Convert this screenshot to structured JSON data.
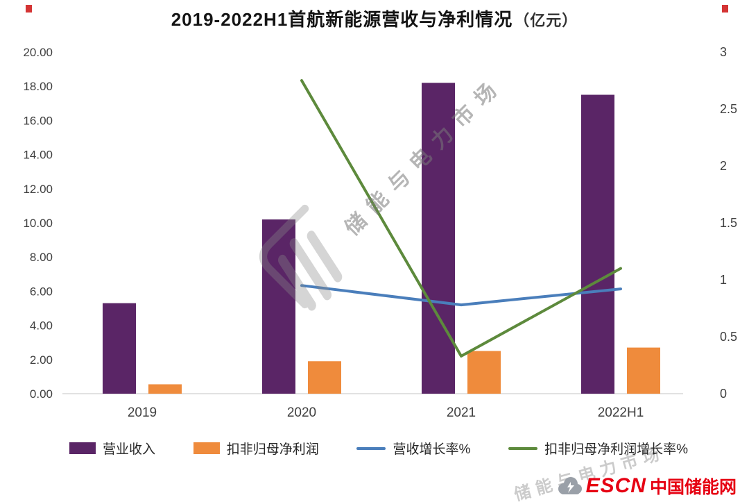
{
  "title": {
    "main": "2019-2022H1首航新能源营收与净利情况",
    "unit": "（亿元）"
  },
  "watermark": {
    "diagonal": "储能与电力市场",
    "corner": "储能与电力市场"
  },
  "footer": {
    "logo_text_bold": "ESCN",
    "logo_text": "中国储能网"
  },
  "chart_data": {
    "type": "bar",
    "subtype": "bar+line combo, dual axis",
    "categories": [
      "2019",
      "2020",
      "2021",
      "2022H1"
    ],
    "bar_series": [
      {
        "name": "营业收入",
        "color": "#5a2566",
        "axis": "left",
        "values": [
          5.3,
          10.2,
          18.2,
          17.5
        ]
      },
      {
        "name": "扣非归母净利润",
        "color": "#ef8b3c",
        "axis": "left",
        "values": [
          0.55,
          1.9,
          2.5,
          2.7
        ]
      }
    ],
    "line_series": [
      {
        "name": "营收增长率%",
        "color": "#4a7ebb",
        "axis": "right",
        "values": [
          null,
          0.95,
          0.78,
          0.92
        ]
      },
      {
        "name": "扣非归母净利润增长率%",
        "color": "#5d8a3c",
        "axis": "right",
        "values": [
          null,
          2.75,
          0.33,
          1.1
        ]
      }
    ],
    "left_axis": {
      "min": 0,
      "max": 20,
      "step": 2,
      "labels": [
        "0.00",
        "2.00",
        "4.00",
        "6.00",
        "8.00",
        "10.00",
        "12.00",
        "14.00",
        "16.00",
        "18.00",
        "20.00"
      ]
    },
    "right_axis": {
      "min": 0,
      "max": 3,
      "step": 0.5,
      "labels": [
        "0",
        "0.5",
        "1",
        "1.5",
        "2",
        "2.5",
        "3"
      ]
    },
    "grid": "off",
    "legend_position": "bottom"
  }
}
